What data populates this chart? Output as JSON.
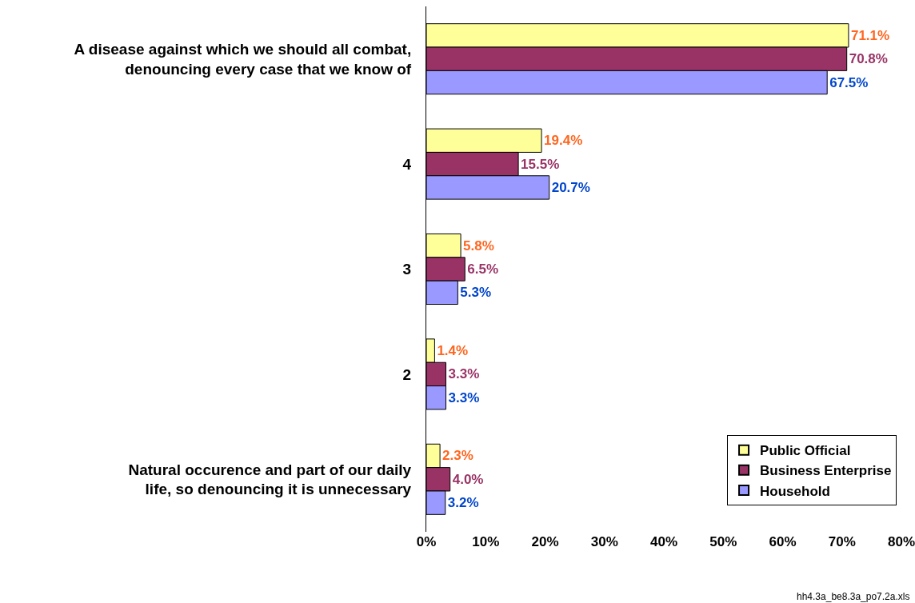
{
  "chart_data": {
    "type": "bar",
    "orientation": "horizontal",
    "categories": [
      "A disease against which we should all combat, denouncing every case that we know of",
      "4",
      "3",
      "2",
      "Natural occurence and part of our daily life, so denouncing it is unnecessary"
    ],
    "series": [
      {
        "name": "Public Official",
        "color": "#ffff99",
        "values": [
          71.1,
          19.4,
          5.8,
          1.4,
          2.3
        ],
        "value_labels": [
          "71.1%",
          "19.4%",
          "5.8%",
          "1.4%",
          "2.3%"
        ]
      },
      {
        "name": "Business Enterprise",
        "color": "#993366",
        "values": [
          70.8,
          15.5,
          6.5,
          3.3,
          4.0
        ],
        "value_labels": [
          "70.8%",
          "15.5%",
          "6.5%",
          "3.3%",
          "4.0%"
        ]
      },
      {
        "name": "Household",
        "color": "#9999ff",
        "values": [
          67.5,
          20.7,
          5.3,
          3.3,
          3.2
        ],
        "value_labels": [
          "67.5%",
          "20.7%",
          "5.3%",
          "3.3%",
          "3.2%"
        ]
      }
    ],
    "xlim": [
      0,
      80
    ],
    "xticks": [
      {
        "value": 0,
        "label": "0%"
      },
      {
        "value": 10,
        "label": "10%"
      },
      {
        "value": 20,
        "label": "20%"
      },
      {
        "value": 30,
        "label": "30%"
      },
      {
        "value": 40,
        "label": "40%"
      },
      {
        "value": 50,
        "label": "50%"
      },
      {
        "value": 60,
        "label": "60%"
      },
      {
        "value": 70,
        "label": "70%"
      },
      {
        "value": 80,
        "label": "80%"
      }
    ],
    "grid": false,
    "legend": "bottom right",
    "annotations": [
      "hh4.3a_be8.3a_po7.2a.xls"
    ]
  }
}
